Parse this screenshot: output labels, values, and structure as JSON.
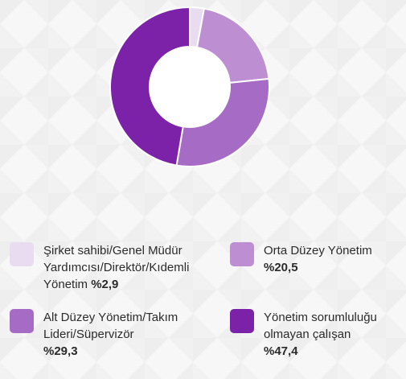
{
  "chart_data": {
    "type": "pie",
    "style": "donut",
    "categories": [
      "Şirket sahibi/Genel Müdür Yardımcısı/Direktör/Kıdemli Yönetim",
      "Orta Düzey Yönetim",
      "Alt Düzey Yönetim/Takım Lideri/Süpervizör",
      "Yönetim sorumluluğu olmayan çalışan"
    ],
    "values": [
      2.9,
      20.5,
      29.3,
      47.4
    ],
    "colors": [
      "#eadcf0",
      "#bd8fd2",
      "#a66bc4",
      "#7b22a8"
    ],
    "legend_position": "bottom"
  },
  "legend": [
    {
      "label": "Şirket sahibi/Genel Müdür\nYardımcısı/Direktör/Kıdemli\nYönetim",
      "value_text": "%2,9",
      "color": "#eadcf0"
    },
    {
      "label": "Orta Düzey Yönetim",
      "value_text": "%20,5",
      "color": "#bd8fd2"
    },
    {
      "label": "Alt Düzey Yönetim/Takım\nLideri/Süpervizör",
      "value_text": "%29,3",
      "color": "#a66bc4"
    },
    {
      "label": "Yönetim sorumluluğu\nolmayan çalışan",
      "value_text": "%47,4",
      "color": "#7b22a8"
    }
  ]
}
